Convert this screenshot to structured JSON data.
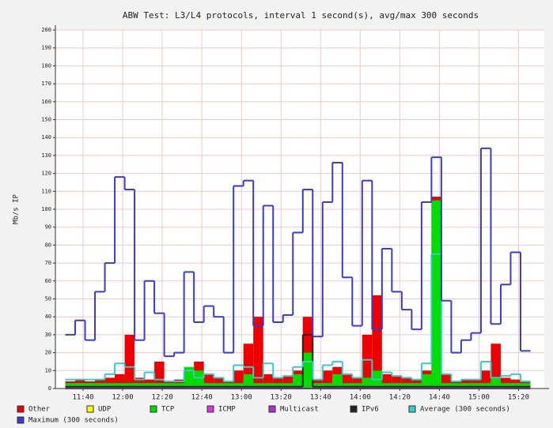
{
  "chart_data": {
    "type": "line",
    "title": "ABW Test: L3/L4 protocols, interval 1 second(s), avg/max 300 seconds",
    "y_label": "Mb/s IP",
    "x": [
      691,
      696,
      701,
      706,
      711,
      716,
      721,
      726,
      731,
      736,
      741,
      746,
      751,
      756,
      761,
      766,
      771,
      776,
      781,
      786,
      791,
      796,
      801,
      806,
      811,
      816,
      821,
      826,
      831,
      836,
      841,
      846,
      851,
      856,
      861,
      866,
      871,
      876,
      881,
      886,
      891,
      896,
      901,
      906,
      911,
      916,
      921
    ],
    "xlim": [
      686,
      933
    ],
    "xticks": [
      {
        "value": 700,
        "label": "11:40"
      },
      {
        "value": 720,
        "label": "12:00"
      },
      {
        "value": 740,
        "label": "12:20"
      },
      {
        "value": 760,
        "label": "12:40"
      },
      {
        "value": 780,
        "label": "13:00"
      },
      {
        "value": 800,
        "label": "13:20"
      },
      {
        "value": 820,
        "label": "13:40"
      },
      {
        "value": 840,
        "label": "14:00"
      },
      {
        "value": 860,
        "label": "14:20"
      },
      {
        "value": 880,
        "label": "14:40"
      },
      {
        "value": 900,
        "label": "15:00"
      },
      {
        "value": 920,
        "label": "15:20"
      }
    ],
    "ylim": [
      0,
      200
    ],
    "yticks": [
      0,
      10,
      20,
      30,
      40,
      50,
      60,
      70,
      80,
      90,
      100,
      110,
      120,
      130,
      140,
      150,
      160,
      170,
      180,
      190,
      200
    ],
    "grid": true,
    "legend": "bottom",
    "series": [
      {
        "name": "Other",
        "color": "#ee0000",
        "area": true,
        "values": [
          4,
          5,
          4,
          5,
          6,
          8,
          30,
          6,
          5,
          15,
          4,
          5,
          10,
          15,
          8,
          6,
          4,
          10,
          25,
          40,
          8,
          6,
          7,
          10,
          40,
          5,
          10,
          12,
          8,
          6,
          30,
          52,
          8,
          7,
          6,
          5,
          10,
          107,
          8,
          4,
          5,
          5,
          10,
          25,
          6,
          5,
          4
        ]
      },
      {
        "name": "UDP",
        "color": "#ffff00",
        "values": [
          0,
          0,
          0,
          0,
          0,
          0,
          0,
          0,
          0,
          0,
          0,
          0,
          0,
          0,
          0,
          0,
          0,
          0,
          0,
          0,
          0,
          0,
          0,
          0,
          0,
          0,
          0,
          0,
          0,
          0,
          0,
          0,
          0,
          0,
          0,
          0,
          0,
          0,
          0,
          0,
          0,
          0,
          0,
          0,
          0,
          0,
          0
        ]
      },
      {
        "name": "TCP",
        "color": "#00dd00",
        "area": true,
        "values": [
          3,
          3,
          3,
          3,
          3,
          3,
          3,
          3,
          3,
          3,
          3,
          3,
          12,
          10,
          3,
          3,
          3,
          3,
          8,
          3,
          3,
          3,
          3,
          8,
          20,
          3,
          3,
          8,
          3,
          3,
          6,
          10,
          3,
          3,
          3,
          3,
          8,
          105,
          3,
          3,
          3,
          3,
          3,
          6,
          3,
          3,
          3
        ]
      },
      {
        "name": "ICMP",
        "color": "#dd33dd",
        "values": [
          0,
          0,
          0,
          0,
          0,
          0,
          0,
          0,
          0,
          0,
          0,
          0,
          0,
          0,
          0,
          0,
          0,
          0,
          0,
          0,
          0,
          0,
          0,
          0,
          0,
          0,
          0,
          0,
          0,
          0,
          0,
          0,
          0,
          0,
          0,
          0,
          0,
          0,
          0,
          0,
          0,
          0,
          0,
          0,
          0,
          0,
          0
        ]
      },
      {
        "name": "Multicast",
        "color": "#aa33cc",
        "values": [
          0,
          0,
          0,
          0,
          0,
          0,
          0,
          0,
          0,
          0,
          0,
          0,
          0,
          0,
          0,
          0,
          0,
          0,
          0,
          0,
          0,
          0,
          0,
          0,
          0,
          0,
          0,
          0,
          0,
          0,
          0,
          0,
          0,
          0,
          0,
          0,
          0,
          0,
          0,
          0,
          0,
          0,
          0,
          0,
          0,
          0,
          0
        ]
      },
      {
        "name": "IPv6",
        "color": "#222222",
        "values": [
          1,
          1,
          1,
          1,
          1,
          1,
          1,
          1,
          1,
          1,
          1,
          1,
          1,
          1,
          1,
          1,
          1,
          1,
          1,
          1,
          1,
          1,
          1,
          1,
          30,
          1,
          1,
          1,
          1,
          1,
          1,
          1,
          1,
          1,
          1,
          1,
          1,
          1,
          1,
          1,
          1,
          1,
          1,
          1,
          1,
          1,
          1
        ]
      },
      {
        "name": "Average (300 seconds)",
        "color": "#33cccc",
        "values": [
          5,
          5,
          5,
          5,
          8,
          14,
          12,
          5,
          9,
          5,
          4,
          4,
          10,
          6,
          8,
          6,
          4,
          13,
          12,
          6,
          14,
          6,
          7,
          12,
          15,
          5,
          13,
          15,
          8,
          6,
          16,
          5,
          9,
          7,
          6,
          5,
          14,
          75,
          8,
          4,
          5,
          5,
          15,
          6,
          7,
          8,
          4
        ]
      },
      {
        "name": "Maximum (300 seconds)",
        "color": "#3a3acc",
        "values": [
          30,
          38,
          27,
          54,
          70,
          118,
          111,
          27,
          60,
          42,
          18,
          20,
          65,
          37,
          46,
          40,
          20,
          113,
          116,
          35,
          102,
          37,
          41,
          87,
          111,
          29,
          104,
          126,
          62,
          35,
          116,
          33,
          78,
          54,
          44,
          33,
          104,
          129,
          49,
          20,
          27,
          31,
          134,
          36,
          58,
          76,
          21
        ]
      }
    ]
  }
}
